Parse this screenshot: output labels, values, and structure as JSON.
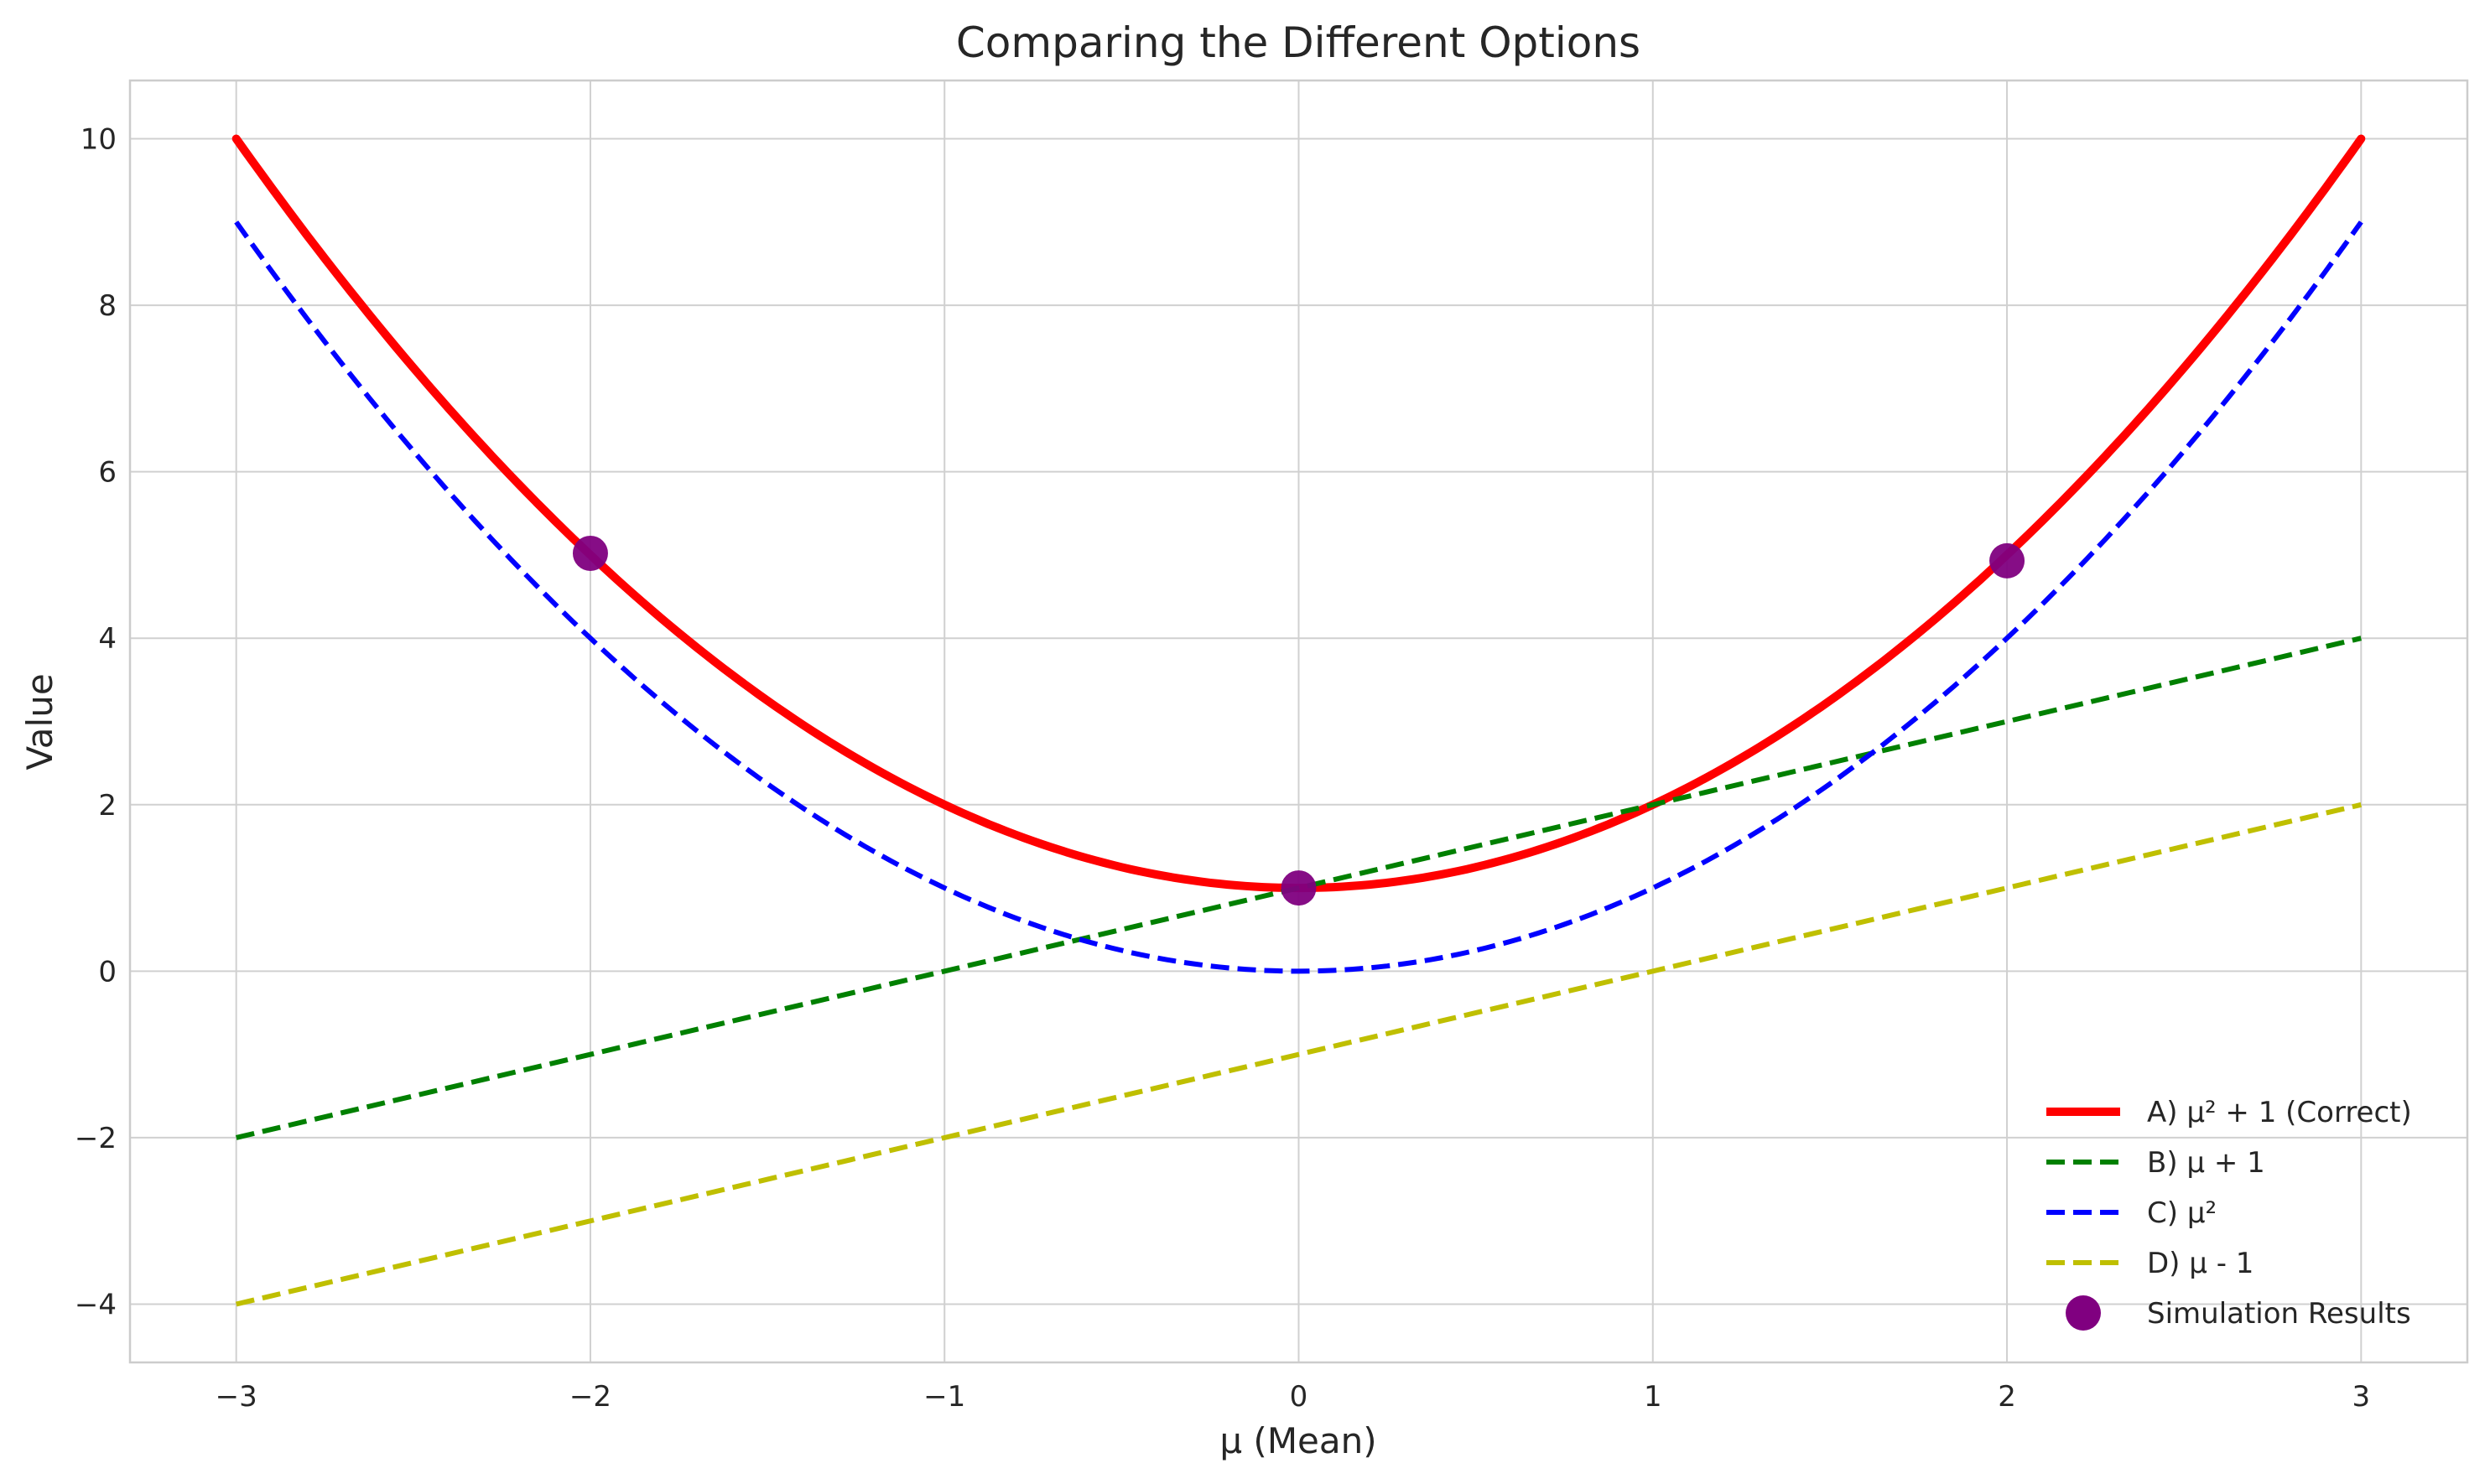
{
  "chart_data": {
    "type": "line",
    "title": "Comparing the Different Options",
    "xlabel": "μ (Mean)",
    "ylabel": "Value",
    "xlim": [
      -3.3,
      3.3
    ],
    "ylim": [
      -4.7,
      10.7
    ],
    "xticks": [
      -3,
      -2,
      -1,
      0,
      1,
      2,
      3
    ],
    "xtick_labels": [
      "−3",
      "−2",
      "−1",
      "0",
      "1",
      "2",
      "3"
    ],
    "yticks": [
      -4,
      -2,
      0,
      2,
      4,
      6,
      8,
      10
    ],
    "ytick_labels": [
      "−4",
      "−2",
      "0",
      "2",
      "4",
      "6",
      "8",
      "10"
    ],
    "grid": true,
    "legend_position": "bottom-right",
    "series": [
      {
        "name": "A) μ² + 1 (Correct)",
        "kind": "line",
        "style": "solid",
        "color": "#ff0000",
        "x_range": [
          -3,
          3
        ],
        "formula": "mu^2 + 1"
      },
      {
        "name": "B) μ + 1",
        "kind": "line",
        "style": "dashed",
        "color": "#008000",
        "x": [
          -3,
          3
        ],
        "y": [
          -2,
          4
        ]
      },
      {
        "name": "C) μ²",
        "kind": "line",
        "style": "dashed",
        "color": "#0000ff",
        "x_range": [
          -3,
          3
        ],
        "formula": "mu^2"
      },
      {
        "name": "D) μ - 1",
        "kind": "line",
        "style": "dashed",
        "color": "#bfbf00",
        "x": [
          -3,
          3
        ],
        "y": [
          -4,
          2
        ]
      },
      {
        "name": "Simulation Results",
        "kind": "scatter",
        "color": "#800080",
        "x": [
          -2,
          0,
          2
        ],
        "y": [
          5.02,
          1.0,
          4.93
        ]
      }
    ]
  }
}
